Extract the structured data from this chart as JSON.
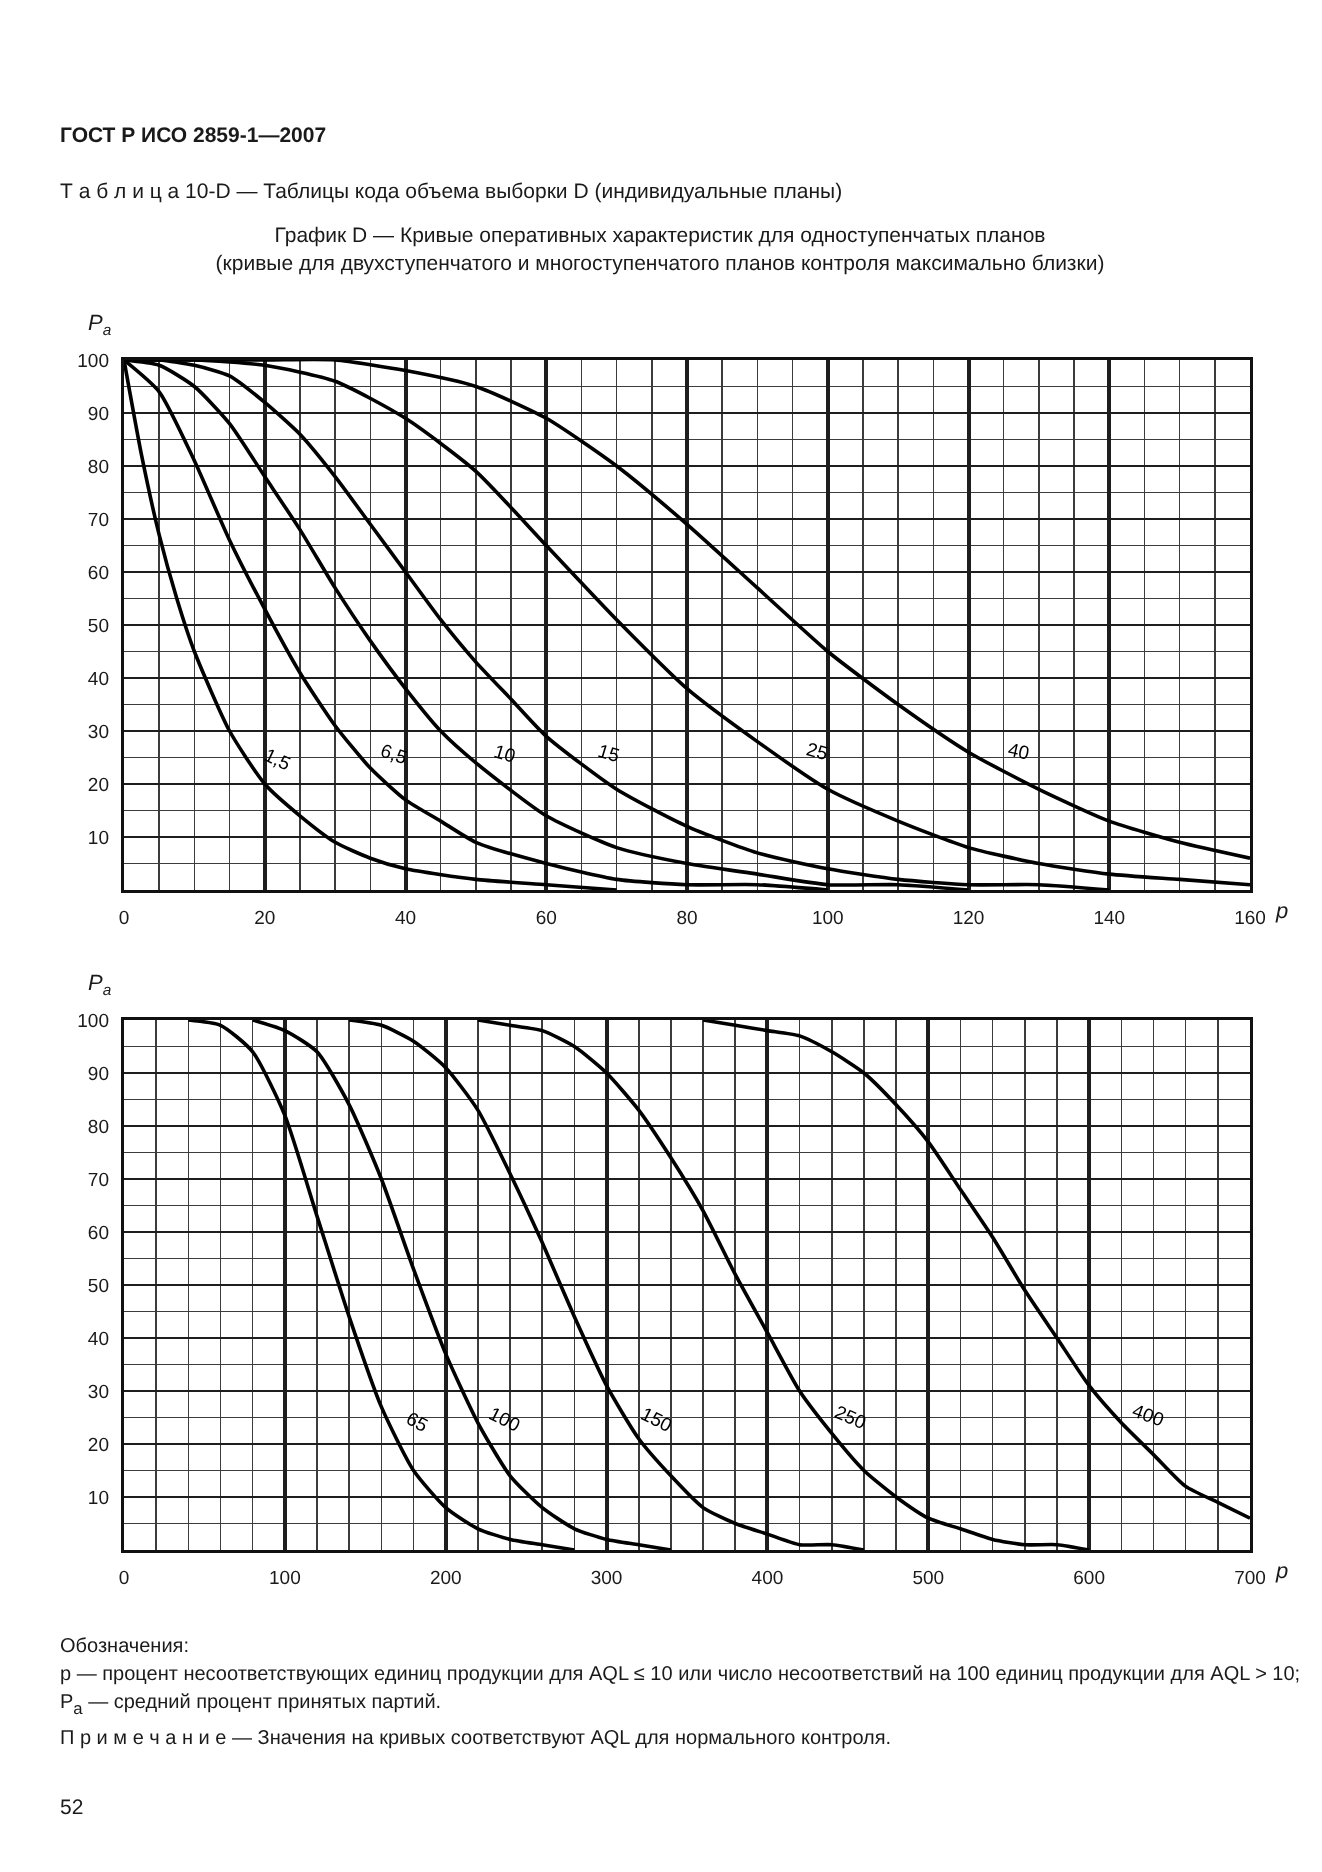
{
  "chart_data": [
    {
      "type": "line",
      "title": "График D — Кривые оперативных характеристик для одноступенчатых планов",
      "subtitle": "(кривые для двухступенчатого и многоступенчатого планов контроля максимально близки)",
      "xlabel": "p",
      "ylabel": "P$_{a}$",
      "annotations": [
        "ГОСТ Р ИСО 2859-1—2007",
        "Т а б л и ц а 10-D — Таблицы кода объема выборки D (индивидуальные планы)",
        "Обозначения:",
        "p — процент несоответствующих единиц продукции для AQL ≤ 10 или число несоответствий на 100 единиц продукции для AQL > 10;",
        "P$_{a}$ — средний процент принятых партий.",
        "П р и м е ч а н и е — Значения на кривых соответствуют AQL для нормального контроля.",
        "52"
      ],
      "xlim": [
        0,
        160
      ],
      "xticks": [
        0,
        {
          "value": 5,
          "label": null
        },
        {
          "value": 10,
          "label": null
        },
        {
          "value": 15,
          "label": null
        },
        20,
        {
          "value": 25,
          "label": null
        },
        {
          "value": 30,
          "label": null
        },
        {
          "value": 35,
          "label": null
        },
        40,
        {
          "value": 45,
          "label": null
        },
        {
          "value": 50,
          "label": null
        },
        {
          "value": 55,
          "label": null
        },
        60,
        {
          "value": 65,
          "label": null
        },
        {
          "value": 70,
          "label": null
        },
        {
          "value": 75,
          "label": null
        },
        80,
        {
          "value": 85,
          "label": null
        },
        {
          "value": 90,
          "label": null
        },
        {
          "value": 95,
          "label": null
        },
        100,
        {
          "value": 105,
          "label": null
        },
        {
          "value": 110,
          "label": null
        },
        {
          "value": 115,
          "label": null
        },
        120,
        {
          "value": 125,
          "label": null
        },
        {
          "value": 130,
          "label": null
        },
        {
          "value": 135,
          "label": null
        },
        140,
        {
          "value": 145,
          "label": null
        },
        {
          "value": 150,
          "label": null
        },
        {
          "value": 155,
          "label": null
        },
        160
      ],
      "ylim": [
        0,
        100
      ],
      "yticks": [
        {
          "value": 0,
          "label": null
        },
        {
          "value": 5,
          "label": null
        },
        10,
        {
          "value": 15,
          "label": null
        },
        20,
        {
          "value": 25,
          "label": null
        },
        30,
        {
          "value": 35,
          "label": null
        },
        40,
        {
          "value": 45,
          "label": null
        },
        50,
        {
          "value": 55,
          "label": null
        },
        60,
        {
          "value": 65,
          "label": null
        },
        70,
        {
          "value": 75,
          "label": null
        },
        80,
        {
          "value": 85,
          "label": null
        },
        90,
        {
          "value": 95,
          "label": null
        },
        100
      ],
      "grid": true,
      "series": [
        {
          "name": "1,5",
          "color": "#000000",
          "x": [
            0,
            2.5,
            5,
            7.5,
            10,
            15,
            20,
            25,
            30,
            35,
            40,
            50,
            60,
            70
          ],
          "values": [
            100,
            82,
            67,
            55,
            45,
            30,
            20,
            14,
            9,
            6,
            4,
            2,
            1,
            0
          ]
        },
        {
          "name": "6,5",
          "color": "#000000",
          "x": [
            0,
            5,
            10,
            15,
            20,
            25,
            30,
            35,
            40,
            45,
            50,
            60,
            70,
            80,
            90,
            100
          ],
          "values": [
            100,
            94,
            81,
            66,
            53,
            41,
            31,
            23,
            17,
            13,
            9,
            5,
            2,
            1,
            1,
            0
          ]
        },
        {
          "name": "10",
          "color": "#000000",
          "x": [
            0,
            5,
            10,
            15,
            20,
            25,
            30,
            35,
            40,
            45,
            50,
            60,
            70,
            80,
            90,
            100,
            110,
            120
          ],
          "values": [
            100,
            99,
            95,
            88,
            78,
            68,
            57,
            47,
            38,
            30,
            24,
            14,
            8,
            5,
            3,
            1,
            1,
            0
          ]
        },
        {
          "name": "15",
          "color": "#000000",
          "x": [
            0,
            5,
            10,
            15,
            20,
            25,
            30,
            35,
            40,
            45,
            50,
            55,
            60,
            70,
            80,
            90,
            100,
            110,
            120,
            130,
            140
          ],
          "values": [
            100,
            100,
            99,
            97,
            92,
            86,
            78,
            69,
            60,
            51,
            43,
            36,
            29,
            19,
            12,
            7,
            4,
            2,
            1,
            1,
            0
          ]
        },
        {
          "name": "25",
          "color": "#000000",
          "x": [
            0,
            10,
            20,
            30,
            40,
            50,
            60,
            70,
            80,
            90,
            100,
            110,
            120,
            130,
            140,
            150,
            160
          ],
          "values": [
            100,
            100,
            99,
            96,
            89,
            79,
            65,
            51,
            38,
            28,
            19,
            13,
            8,
            5,
            3,
            2,
            1
          ]
        },
        {
          "name": "40",
          "color": "#000000",
          "x": [
            0,
            20,
            30,
            40,
            50,
            60,
            70,
            80,
            90,
            100,
            110,
            120,
            130,
            140,
            150,
            160
          ],
          "values": [
            100,
            100,
            100,
            98,
            95,
            89,
            80,
            69,
            57,
            45,
            35,
            26,
            19,
            13,
            9,
            6
          ]
        }
      ]
    },
    {
      "type": "line",
      "xlabel": "p",
      "ylabel": "P$_{a}$",
      "xlim": [
        0,
        700
      ],
      "xticks": [
        0,
        {
          "value": 20,
          "label": null
        },
        {
          "value": 40,
          "label": null
        },
        {
          "value": 60,
          "label": null
        },
        {
          "value": 80,
          "label": null
        },
        100,
        {
          "value": 120,
          "label": null
        },
        {
          "value": 140,
          "label": null
        },
        {
          "value": 160,
          "label": null
        },
        {
          "value": 180,
          "label": null
        },
        200,
        {
          "value": 220,
          "label": null
        },
        {
          "value": 240,
          "label": null
        },
        {
          "value": 260,
          "label": null
        },
        {
          "value": 280,
          "label": null
        },
        300,
        {
          "value": 320,
          "label": null
        },
        {
          "value": 340,
          "label": null
        },
        {
          "value": 360,
          "label": null
        },
        {
          "value": 380,
          "label": null
        },
        400,
        {
          "value": 420,
          "label": null
        },
        {
          "value": 440,
          "label": null
        },
        {
          "value": 460,
          "label": null
        },
        {
          "value": 480,
          "label": null
        },
        500,
        {
          "value": 520,
          "label": null
        },
        {
          "value": 540,
          "label": null
        },
        {
          "value": 560,
          "label": null
        },
        {
          "value": 580,
          "label": null
        },
        600,
        {
          "value": 620,
          "label": null
        },
        {
          "value": 640,
          "label": null
        },
        {
          "value": 660,
          "label": null
        },
        {
          "value": 680,
          "label": null
        },
        700
      ],
      "ylim": [
        0,
        100
      ],
      "yticks": [
        {
          "value": 0,
          "label": null
        },
        {
          "value": 5,
          "label": null
        },
        10,
        {
          "value": 15,
          "label": null
        },
        20,
        {
          "value": 25,
          "label": null
        },
        30,
        {
          "value": 35,
          "label": null
        },
        40,
        {
          "value": 45,
          "label": null
        },
        50,
        {
          "value": 55,
          "label": null
        },
        60,
        {
          "value": 65,
          "label": null
        },
        70,
        {
          "value": 75,
          "label": null
        },
        80,
        {
          "value": 85,
          "label": null
        },
        90,
        {
          "value": 95,
          "label": null
        },
        100
      ],
      "grid": true,
      "series": [
        {
          "name": "65",
          "color": "#000000",
          "x": [
            40,
            60,
            80,
            100,
            120,
            140,
            160,
            180,
            200,
            220,
            240,
            260,
            280
          ],
          "values": [
            100,
            99,
            94,
            82,
            63,
            44,
            27,
            15,
            8,
            4,
            2,
            1,
            0
          ]
        },
        {
          "name": "100",
          "color": "#000000",
          "x": [
            80,
            100,
            120,
            140,
            160,
            180,
            200,
            220,
            240,
            260,
            280,
            300,
            320,
            340
          ],
          "values": [
            100,
            98,
            94,
            84,
            70,
            53,
            37,
            24,
            14,
            8,
            4,
            2,
            1,
            0
          ]
        },
        {
          "name": "150",
          "color": "#000000",
          "x": [
            140,
            160,
            180,
            200,
            220,
            240,
            260,
            280,
            300,
            320,
            340,
            360,
            380,
            400,
            420,
            440,
            460
          ],
          "values": [
            100,
            99,
            96,
            91,
            83,
            71,
            58,
            44,
            31,
            21,
            14,
            8,
            5,
            3,
            1,
            1,
            0
          ]
        },
        {
          "name": "250",
          "color": "#000000",
          "x": [
            220,
            240,
            260,
            280,
            300,
            320,
            340,
            360,
            380,
            400,
            420,
            440,
            460,
            480,
            500,
            520,
            540,
            560,
            580,
            600
          ],
          "values": [
            100,
            99,
            98,
            95,
            90,
            83,
            74,
            64,
            52,
            41,
            30,
            22,
            15,
            10,
            6,
            4,
            2,
            1,
            1,
            0
          ]
        },
        {
          "name": "400",
          "color": "#000000",
          "x": [
            360,
            380,
            400,
            420,
            440,
            460,
            480,
            500,
            520,
            540,
            560,
            580,
            600,
            620,
            640,
            660,
            680,
            700
          ],
          "values": [
            100,
            99,
            98,
            97,
            94,
            90,
            84,
            77,
            68,
            59,
            49,
            40,
            31,
            24,
            18,
            12,
            9,
            6
          ]
        }
      ]
    }
  ]
}
